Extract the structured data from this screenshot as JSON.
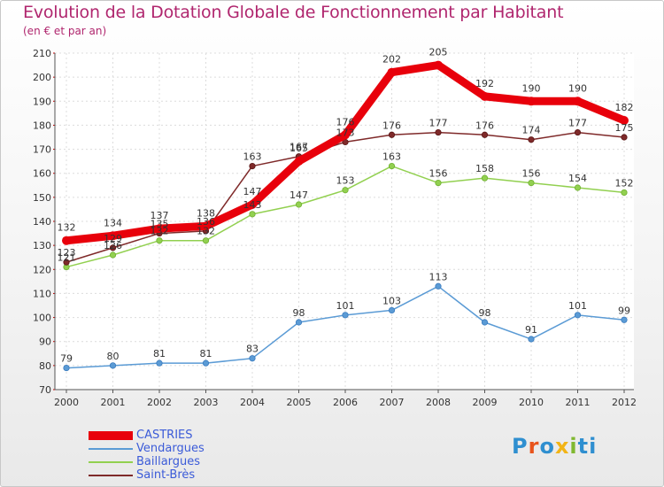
{
  "chart_data": {
    "type": "line",
    "title": "Evolution de la Dotation Globale de Fonctionnement par Habitant",
    "subtitle": "(en € et par an)",
    "xlabel": "",
    "ylabel": "",
    "ylim": [
      70,
      210
    ],
    "yticks": [
      70,
      80,
      90,
      100,
      110,
      120,
      130,
      140,
      150,
      160,
      170,
      180,
      190,
      200,
      210
    ],
    "categories": [
      "2000",
      "2001",
      "2002",
      "2003",
      "2004",
      "2005",
      "2006",
      "2007",
      "2008",
      "2009",
      "2010",
      "2011",
      "2012"
    ],
    "grid": true,
    "legend_position": "bottom-left",
    "series": [
      {
        "name": "CASTRIES",
        "color": "#e8000b",
        "values": [
          132,
          134,
          137,
          138,
          147,
          165,
          176,
          202,
          205,
          192,
          190,
          190,
          182
        ],
        "labels": [
          "132",
          "134",
          "137",
          "138",
          "147",
          "165",
          "176",
          "202",
          "205",
          "192",
          "190",
          "190",
          "182"
        ]
      },
      {
        "name": "Vendargues",
        "color": "#5b9bd5",
        "values": [
          79,
          80,
          81,
          81,
          83,
          98,
          101,
          103,
          113,
          98,
          91,
          101,
          99
        ],
        "labels": [
          "79",
          "80",
          "81",
          "81",
          "83",
          "98",
          "101",
          "103",
          "113",
          "98",
          "91",
          "101",
          "99"
        ]
      },
      {
        "name": "Baillargues",
        "color": "#92d050",
        "values": [
          121,
          126,
          132,
          132,
          143,
          147,
          153,
          163,
          156,
          158,
          156,
          154,
          152
        ],
        "labels": [
          "121",
          "126",
          "132",
          "132",
          "143",
          "147",
          "153",
          "163",
          "156",
          "158",
          "156",
          "154",
          "152"
        ]
      },
      {
        "name": "Saint-Brès",
        "color": "#7f2a2a",
        "values": [
          123,
          129,
          135,
          136,
          163,
          167,
          173,
          176,
          177,
          176,
          174,
          177,
          175
        ],
        "labels": [
          "123",
          "129",
          "135",
          "136",
          "163",
          "167",
          "173",
          "176",
          "177",
          "176",
          "174",
          "177",
          "175"
        ]
      }
    ]
  },
  "logo": {
    "text": "Proxiti"
  }
}
